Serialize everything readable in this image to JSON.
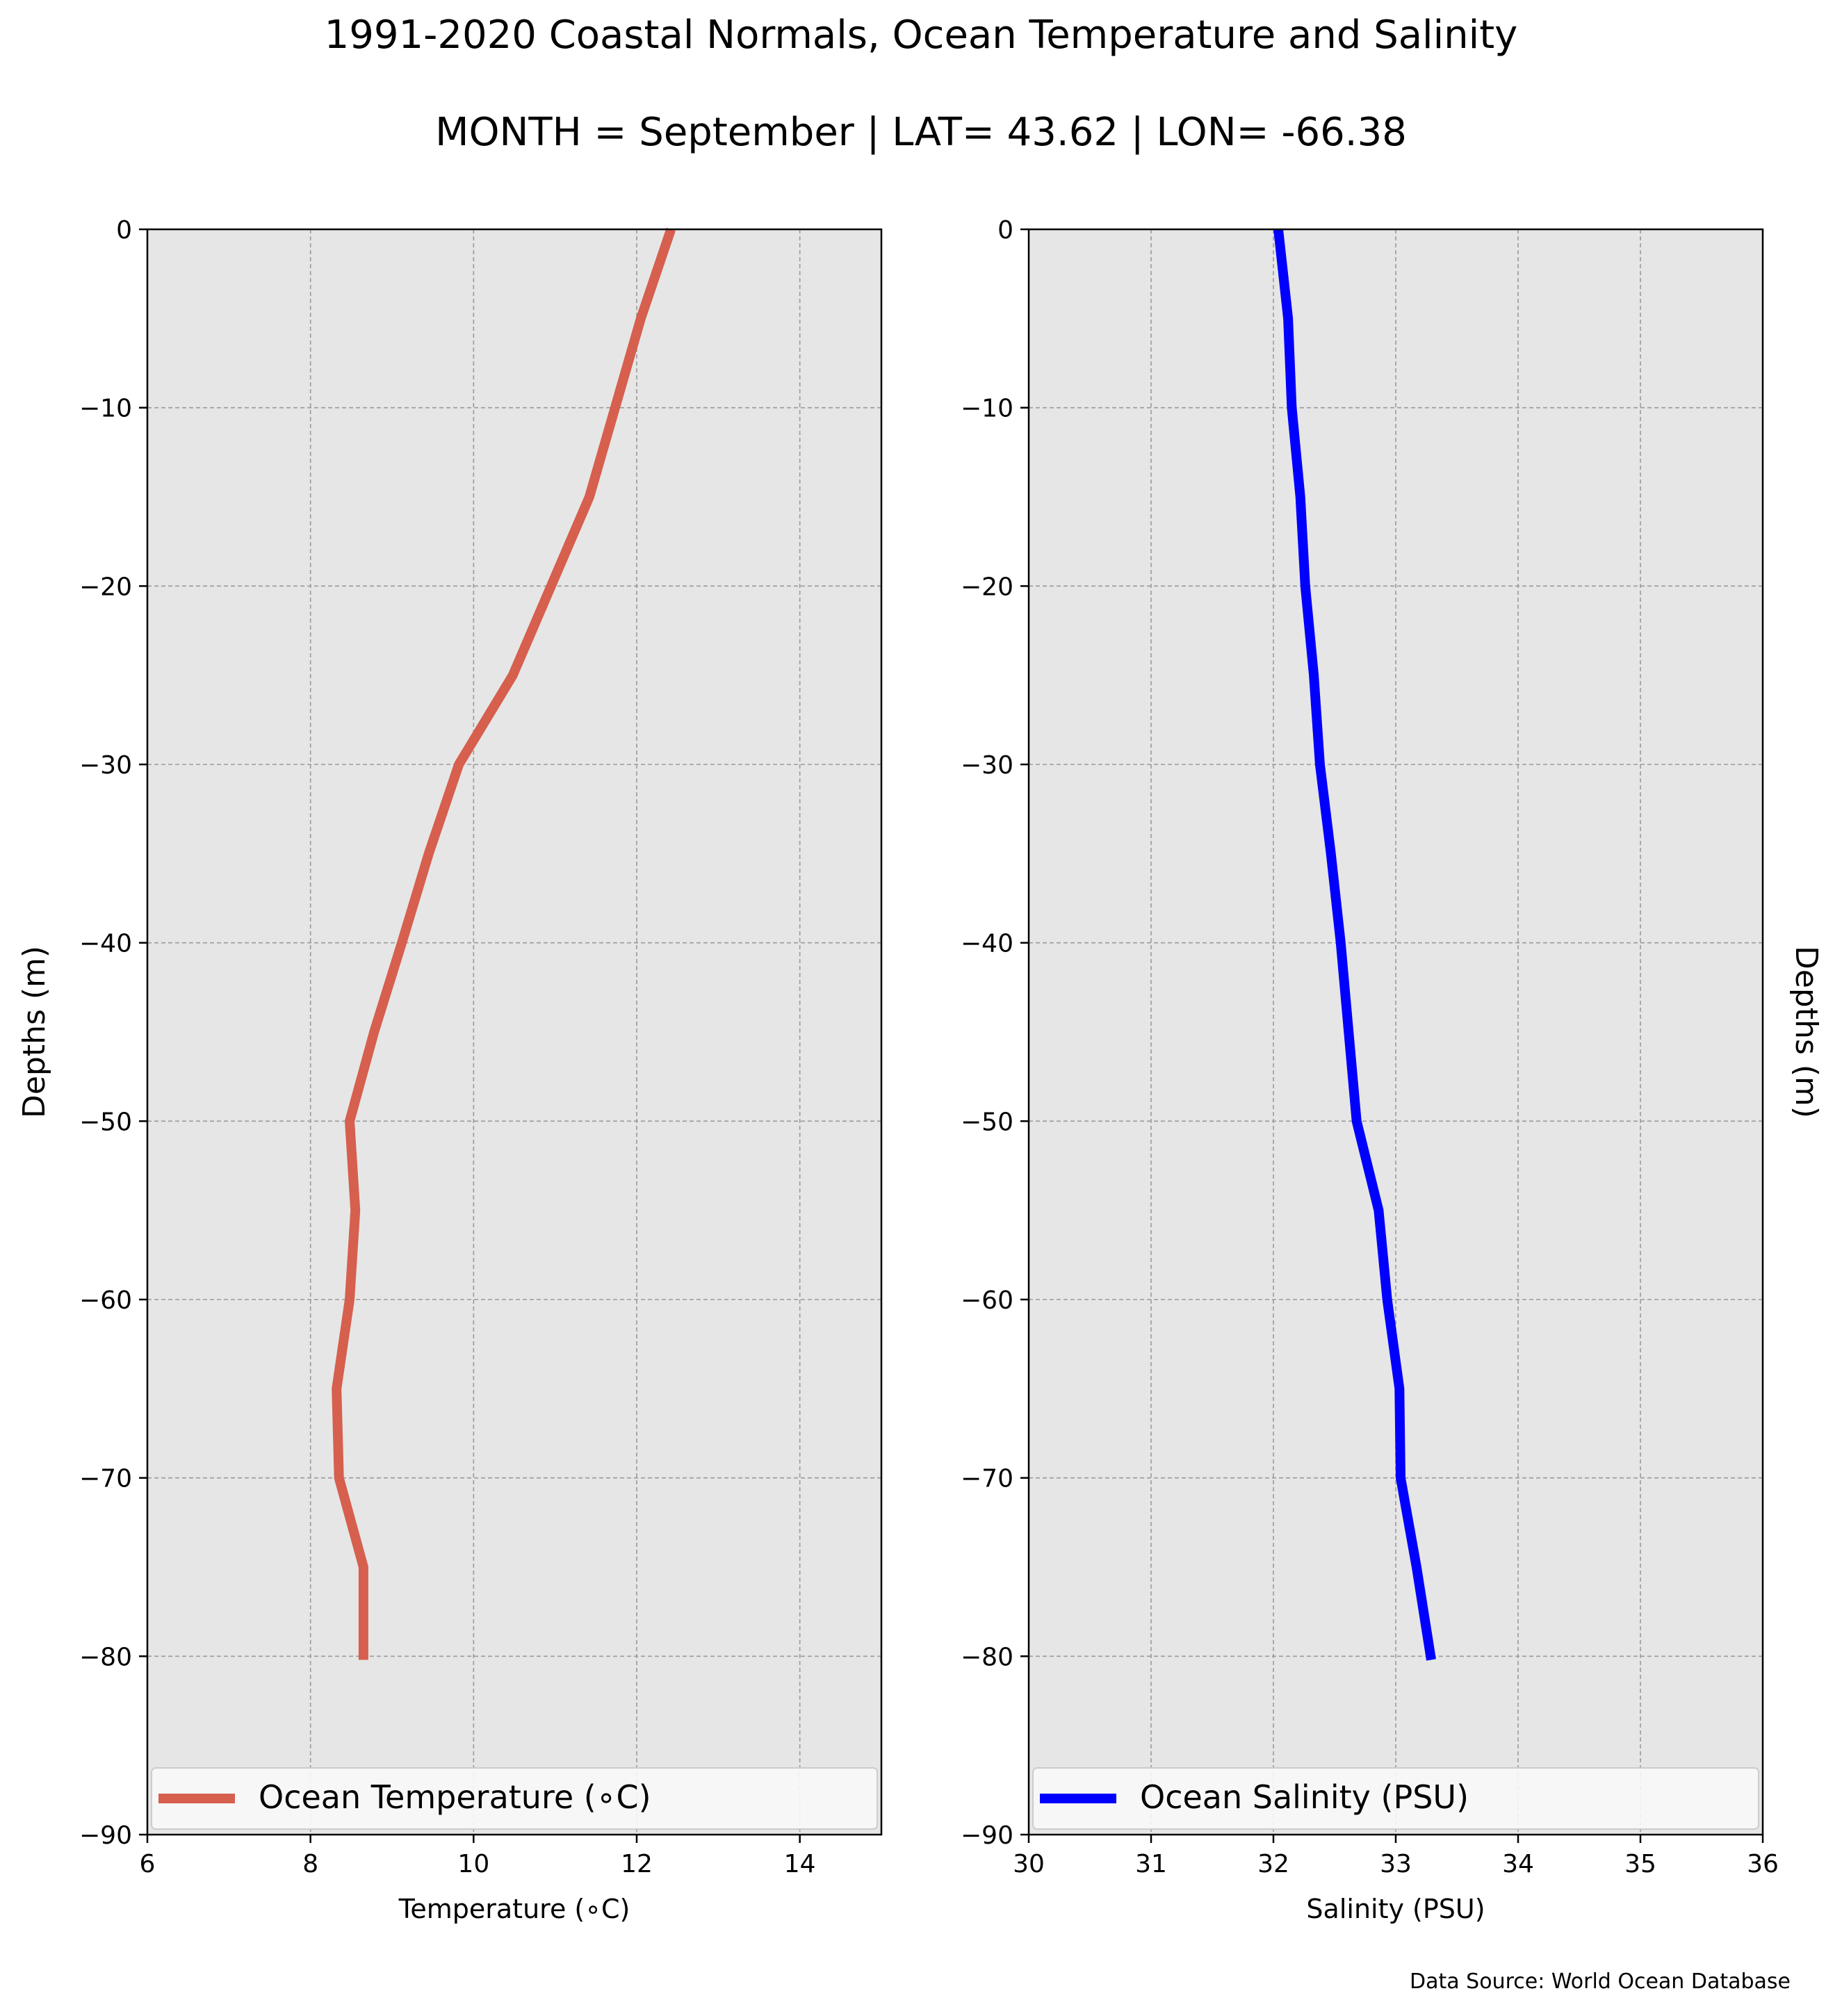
{
  "title": "1991-2020 Coastal Normals, Ocean Temperature and Salinity",
  "subtitle": "MONTH = September | LAT= 43.62 | LON= -66.38",
  "source_note": "Data Source: World Ocean Database",
  "chart_data": [
    {
      "type": "line",
      "panel": "left",
      "xlabel": "Temperature (∘C)",
      "ylabel": "Depths (m)",
      "xlim": [
        6,
        15
      ],
      "ylim": [
        -90,
        0
      ],
      "x_ticks": [
        "6",
        "8",
        "10",
        "12",
        "14"
      ],
      "x_tick_values": [
        6,
        8,
        10,
        12,
        14
      ],
      "y_ticks": [
        "0",
        "−10",
        "−20",
        "−30",
        "−40",
        "−50",
        "−60",
        "−70",
        "−80",
        "−90"
      ],
      "y_tick_values": [
        0,
        -10,
        -20,
        -30,
        -40,
        -50,
        -60,
        -70,
        -80,
        -90
      ],
      "grid": true,
      "legend_position": "bottom",
      "series": [
        {
          "name": "Ocean Temperature (∘C)",
          "color": "#d65f4e",
          "x": [
            12.42,
            12.05,
            11.42,
            10.95,
            10.48,
            9.82,
            9.45,
            9.12,
            8.78,
            8.48,
            8.55,
            8.48,
            8.32,
            8.35,
            8.65,
            8.65
          ],
          "y": [
            0,
            -5,
            -15,
            -20,
            -25,
            -30,
            -35,
            -40,
            -45,
            -50,
            -55,
            -60,
            -65,
            -70,
            -75,
            -80.2
          ]
        }
      ]
    },
    {
      "type": "line",
      "panel": "right",
      "xlabel": "Salinity (PSU)",
      "ylabel": "Depths (m)",
      "xlim": [
        30,
        36
      ],
      "ylim": [
        -90,
        0
      ],
      "x_ticks": [
        "30",
        "31",
        "32",
        "33",
        "34",
        "35",
        "36"
      ],
      "x_tick_values": [
        30,
        31,
        32,
        33,
        34,
        35,
        36
      ],
      "y_ticks": [
        "0",
        "−10",
        "−20",
        "−30",
        "−40",
        "−50",
        "−60",
        "−70",
        "−80",
        "−90"
      ],
      "y_tick_values": [
        0,
        -10,
        -20,
        -30,
        -40,
        -50,
        -60,
        -70,
        -80,
        -90
      ],
      "grid": true,
      "legend_position": "bottom",
      "series": [
        {
          "name": "Ocean Salinity (PSU)",
          "color": "#0000ff",
          "x": [
            32.04,
            32.12,
            32.15,
            32.22,
            32.26,
            32.33,
            32.38,
            32.47,
            32.55,
            32.68,
            32.86,
            32.93,
            33.03,
            33.04,
            33.17,
            33.29
          ],
          "y": [
            0,
            -5,
            -10,
            -15,
            -20,
            -25,
            -30,
            -35,
            -40,
            -50,
            -55,
            -60,
            -65,
            -70,
            -75,
            -80.2
          ]
        }
      ]
    }
  ]
}
